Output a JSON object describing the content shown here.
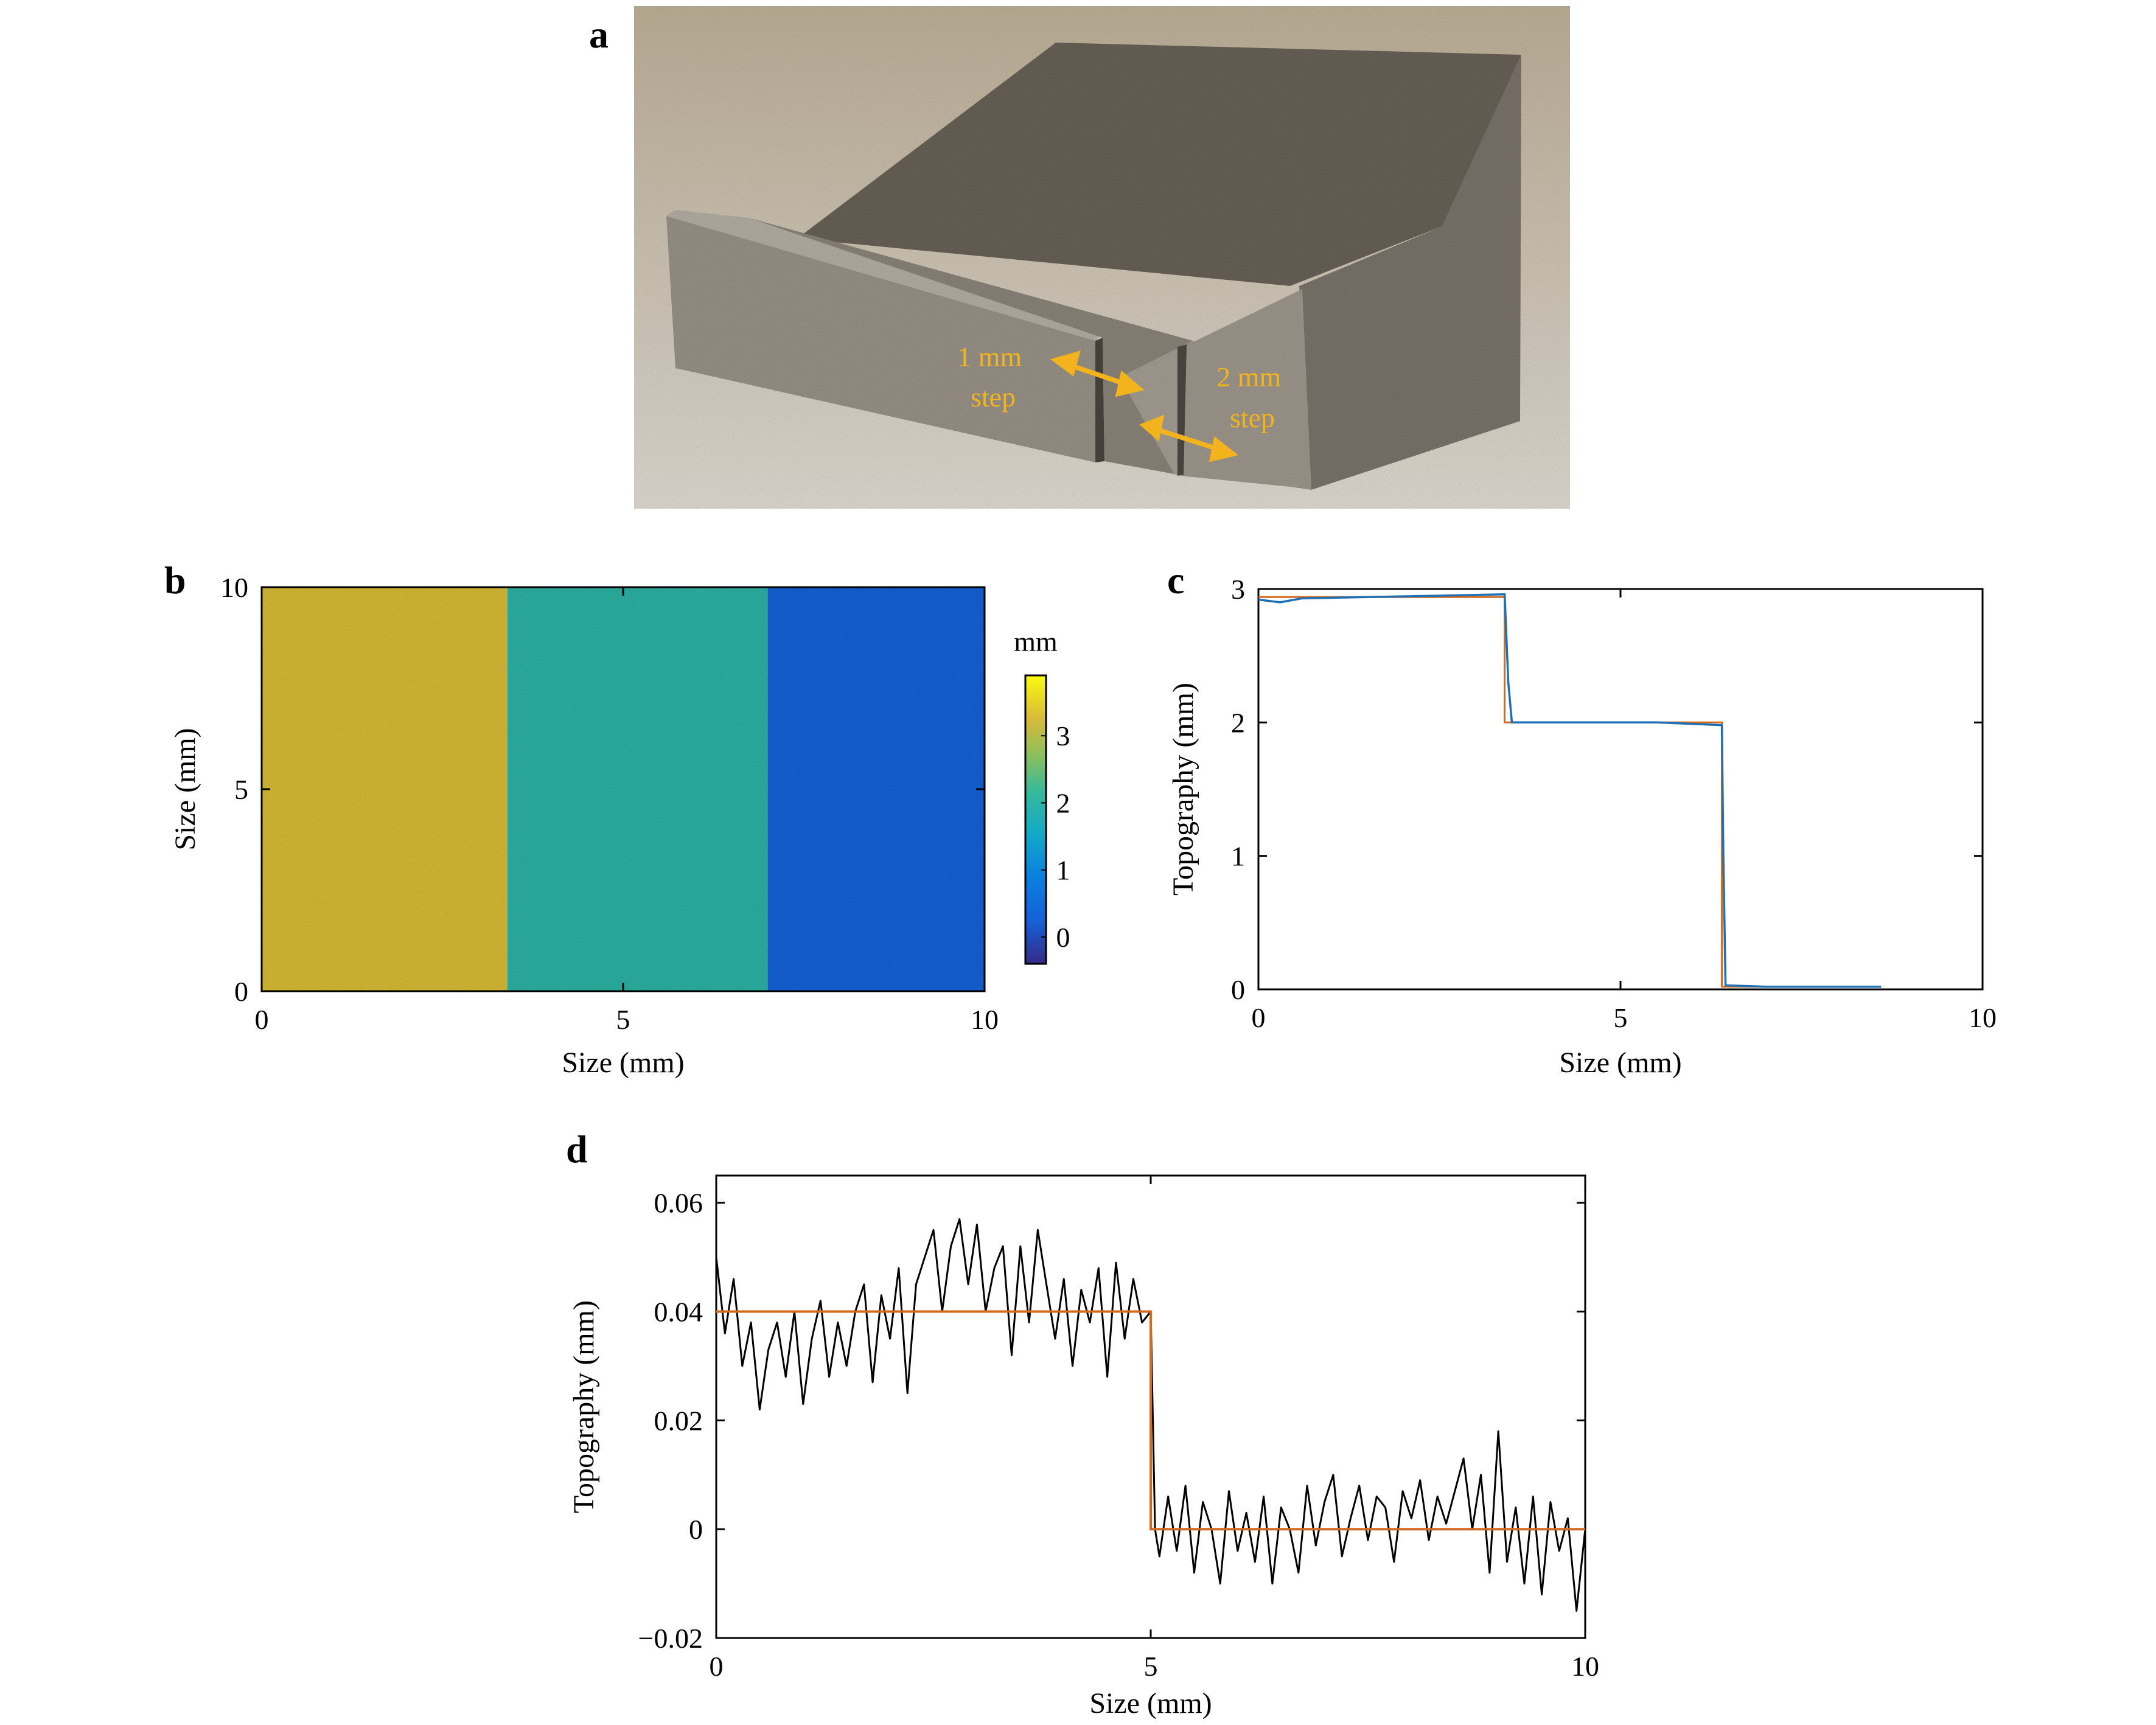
{
  "panels": {
    "a": {
      "letter": "a",
      "annotations": [
        {
          "lines": [
            "1 mm",
            "step"
          ]
        },
        {
          "lines": [
            "2 mm",
            "step"
          ]
        }
      ],
      "colors": {
        "background": "#c3b6a0",
        "metal_top": "#6b6359",
        "metal_face": "#8e887f",
        "annotation": "#f2b31c"
      }
    },
    "b": {
      "letter": "b",
      "xlabel": "Size (mm)",
      "ylabel": "Size (mm)",
      "xticks": [
        "0",
        "5",
        "10"
      ],
      "yticks": [
        "0",
        "5",
        "10"
      ],
      "colorbar_unit": "mm",
      "colorbar_ticks": [
        "0",
        "1",
        "2",
        "3"
      ]
    },
    "c": {
      "letter": "c",
      "xlabel": "Size (mm)",
      "ylabel": "Topography (mm)",
      "xticks": [
        "0",
        "5",
        "10"
      ],
      "yticks": [
        "0",
        "1",
        "2",
        "3"
      ]
    },
    "d": {
      "letter": "d",
      "xlabel": "Size (mm)",
      "ylabel": "Topography (mm)",
      "xticks": [
        "0",
        "5",
        "10"
      ],
      "yticks": [
        "−0.02",
        "0",
        "0.02",
        "0.04",
        "0.06"
      ]
    }
  },
  "chart_data": [
    {
      "panel": "b",
      "type": "heatmap",
      "xlabel": "Size (mm)",
      "ylabel": "Size (mm)",
      "xlim": [
        0,
        10
      ],
      "ylim": [
        0,
        10
      ],
      "colorbar": {
        "label": "mm",
        "range": [
          -0.4,
          3.9
        ],
        "ticks": [
          0,
          1,
          2,
          3
        ],
        "colormap": "parula"
      },
      "regions": [
        {
          "x_range": [
            0,
            3.4
          ],
          "value": 3.3
        },
        {
          "x_range": [
            3.4,
            7.0
          ],
          "value": 2.0
        },
        {
          "x_range": [
            7.0,
            10
          ],
          "value": 0.3
        }
      ]
    },
    {
      "panel": "c",
      "type": "line",
      "xlabel": "Size (mm)",
      "ylabel": "Topography (mm)",
      "xlim": [
        0,
        10
      ],
      "ylim": [
        0,
        3
      ],
      "series": [
        {
          "color": "#1f6fb4",
          "x": [
            0,
            0.3,
            0.6,
            1.5,
            2.5,
            3.4,
            3.45,
            3.5,
            4.5,
            5.5,
            6.4,
            6.42,
            6.45,
            7.0,
            8.0,
            8.6
          ],
          "y": [
            2.92,
            2.9,
            2.93,
            2.94,
            2.95,
            2.96,
            2.3,
            2.0,
            2.0,
            2.0,
            1.98,
            1.0,
            0.03,
            0.02,
            0.02,
            0.02
          ]
        },
        {
          "color": "#d2691e",
          "x": [
            0,
            3.4,
            3.4,
            6.4,
            6.4,
            8.6
          ],
          "y": [
            2.94,
            2.94,
            2.0,
            2.0,
            0.02,
            0.02
          ]
        }
      ]
    },
    {
      "panel": "d",
      "type": "line",
      "xlabel": "Size (mm)",
      "ylabel": "Topography (mm)",
      "xlim": [
        0,
        10
      ],
      "ylim": [
        -0.02,
        0.065
      ],
      "series": [
        {
          "color": "#000000",
          "x": [
            0,
            0.1,
            0.2,
            0.3,
            0.4,
            0.5,
            0.6,
            0.7,
            0.8,
            0.9,
            1.0,
            1.1,
            1.2,
            1.3,
            1.4,
            1.5,
            1.6,
            1.7,
            1.8,
            1.9,
            2.0,
            2.1,
            2.2,
            2.3,
            2.4,
            2.5,
            2.6,
            2.7,
            2.8,
            2.9,
            3.0,
            3.1,
            3.2,
            3.3,
            3.4,
            3.5,
            3.6,
            3.7,
            3.8,
            3.9,
            4.0,
            4.1,
            4.2,
            4.3,
            4.4,
            4.5,
            4.6,
            4.7,
            4.8,
            4.9,
            5.0,
            5.05,
            5.1,
            5.2,
            5.3,
            5.4,
            5.5,
            5.6,
            5.7,
            5.8,
            5.9,
            6.0,
            6.1,
            6.2,
            6.3,
            6.4,
            6.5,
            6.6,
            6.7,
            6.8,
            6.9,
            7.0,
            7.1,
            7.2,
            7.3,
            7.4,
            7.5,
            7.6,
            7.7,
            7.8,
            7.9,
            8.0,
            8.1,
            8.2,
            8.3,
            8.4,
            8.5,
            8.6,
            8.7,
            8.8,
            8.9,
            9.0,
            9.1,
            9.2,
            9.3,
            9.4,
            9.5,
            9.6,
            9.7,
            9.8,
            9.9,
            10.0
          ],
          "y": [
            0.05,
            0.036,
            0.046,
            0.03,
            0.038,
            0.022,
            0.033,
            0.038,
            0.028,
            0.04,
            0.023,
            0.035,
            0.042,
            0.028,
            0.038,
            0.03,
            0.04,
            0.045,
            0.027,
            0.043,
            0.035,
            0.048,
            0.025,
            0.045,
            0.05,
            0.055,
            0.04,
            0.052,
            0.057,
            0.045,
            0.056,
            0.04,
            0.048,
            0.052,
            0.032,
            0.052,
            0.038,
            0.055,
            0.045,
            0.035,
            0.046,
            0.03,
            0.044,
            0.038,
            0.048,
            0.028,
            0.049,
            0.035,
            0.046,
            0.038,
            0.04,
            0.0,
            -0.005,
            0.006,
            -0.004,
            0.008,
            -0.008,
            0.005,
            0.0,
            -0.01,
            0.007,
            -0.004,
            0.003,
            -0.006,
            0.006,
            -0.01,
            0.004,
            0.0,
            -0.008,
            0.008,
            -0.003,
            0.005,
            0.01,
            -0.005,
            0.002,
            0.008,
            -0.002,
            0.006,
            0.004,
            -0.006,
            0.007,
            0.002,
            0.009,
            -0.002,
            0.006,
            0.001,
            0.007,
            0.013,
            0.0,
            0.01,
            -0.008,
            0.018,
            -0.006,
            0.004,
            -0.01,
            0.006,
            -0.012,
            0.005,
            -0.004,
            0.002,
            -0.015,
            0.0
          ]
        },
        {
          "color": "#d2691e",
          "x": [
            0,
            5,
            5,
            10
          ],
          "y": [
            0.04,
            0.04,
            0.0,
            0.0
          ]
        }
      ]
    }
  ]
}
